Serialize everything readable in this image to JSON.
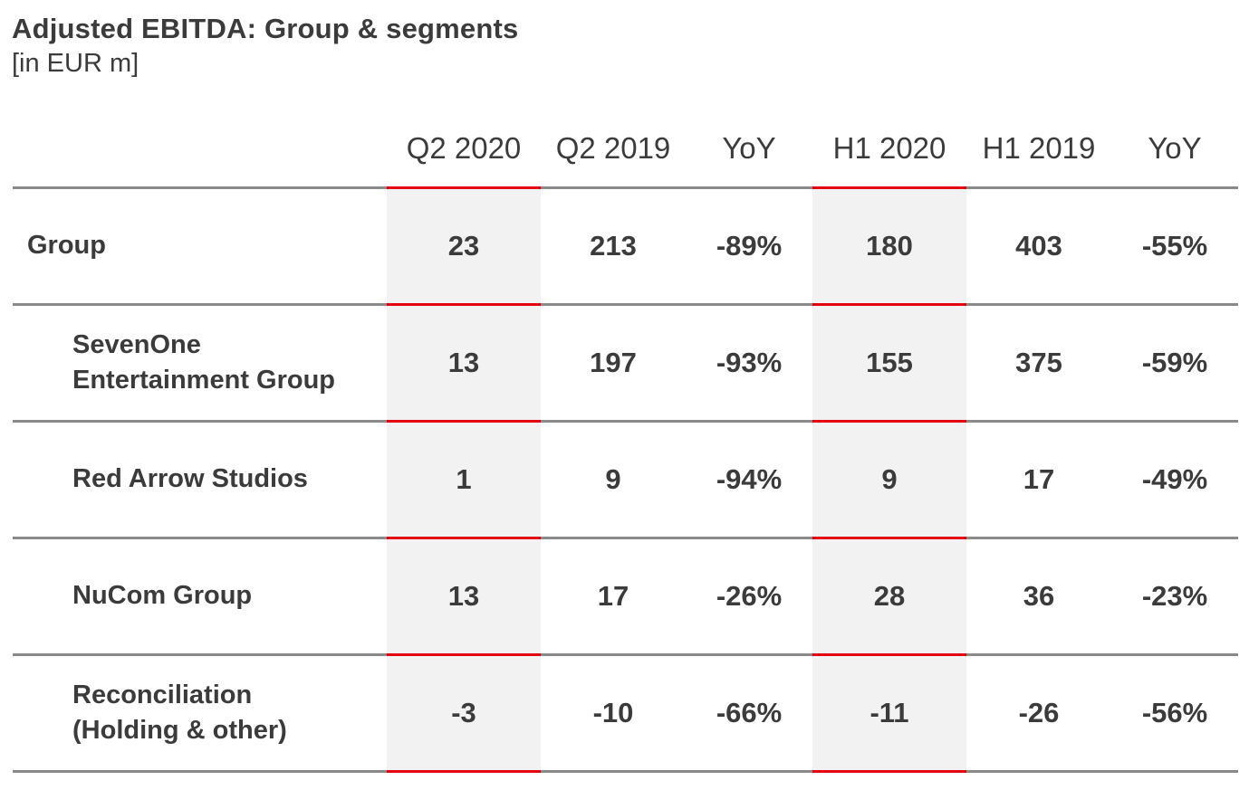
{
  "title": "Adjusted EBITDA: Group & segments",
  "subtitle": "[in EUR m]",
  "colors": {
    "accent": "#e3000f",
    "highlight_bg": "#f2f2f2",
    "rule": "#8a8a8a",
    "text": "#3b3b3b"
  },
  "chart_data": {
    "type": "table",
    "title": "Adjusted EBITDA: Group & segments",
    "unit": "[in EUR m]",
    "columns": [
      "Q2 2020",
      "Q2 2019",
      "YoY",
      "H1 2020",
      "H1 2019",
      "YoY"
    ],
    "highlighted_columns": [
      "Q2 2020",
      "H1 2020"
    ],
    "rows": [
      {
        "label": "Group",
        "values": [
          "23",
          "213",
          "-89%",
          "180",
          "403",
          "-55%"
        ]
      },
      {
        "label": "SevenOne\nEntertainment Group",
        "values": [
          "13",
          "197",
          "-93%",
          "155",
          "375",
          "-59%"
        ]
      },
      {
        "label": "Red Arrow Studios",
        "values": [
          "1",
          "9",
          "-94%",
          "9",
          "17",
          "-49%"
        ]
      },
      {
        "label": "NuCom Group",
        "values": [
          "13",
          "17",
          "-26%",
          "28",
          "36",
          "-23%"
        ]
      },
      {
        "label": "Reconciliation\n(Holding & other)",
        "values": [
          "-3",
          "-10",
          "-66%",
          "-11",
          "-26",
          "-56%"
        ]
      }
    ]
  }
}
